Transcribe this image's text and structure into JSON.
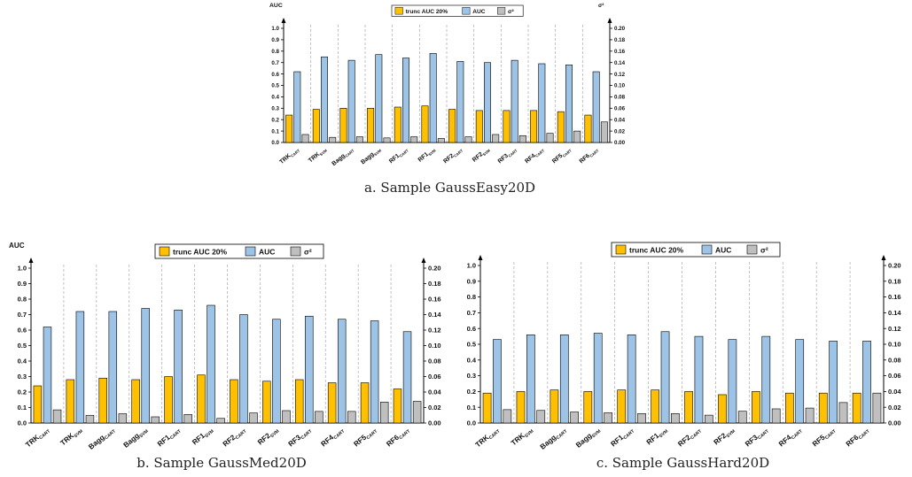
{
  "colors": {
    "trunc": "#FFC000",
    "auc": "#9DC3E6",
    "var": "#BFBFBF",
    "edge": "#000000",
    "grid": "#AAAAAA"
  },
  "captions": {
    "a": "a. Sample GaussEasy20D",
    "b": "b. Sample GaussMed20D",
    "c": "c. Sample GaussHard20D"
  },
  "chart_data": [
    {
      "id": "a",
      "type": "bar",
      "ylabel_left": "AUC",
      "ylabel_right": "σ²",
      "ylim_left": [
        0,
        1.0
      ],
      "ylim_right": [
        0,
        0.2
      ],
      "yticks_left": [
        "0.0",
        "0.1",
        "0.2",
        "0.3",
        "0.4",
        "0.5",
        "0.6",
        "0.7",
        "0.8",
        "0.9",
        "1.0"
      ],
      "yticks_right": [
        "0.00",
        "0.02",
        "0.04",
        "0.06",
        "0.08",
        "0.10",
        "0.12",
        "0.14",
        "0.16",
        "0.18",
        "0.20"
      ],
      "legend_position": "top-center",
      "categories": [
        {
          "base": "TRK",
          "sub": "CART"
        },
        {
          "base": "TRK",
          "sub": "SVM"
        },
        {
          "base": "Bagg",
          "sub": "CART"
        },
        {
          "base": "Bagg",
          "sub": "SVM"
        },
        {
          "base": "RF1",
          "sub": "CART"
        },
        {
          "base": "RF1",
          "sub": "SVM"
        },
        {
          "base": "RF2",
          "sub": "CART"
        },
        {
          "base": "RF2",
          "sub": "SVM"
        },
        {
          "base": "RF3",
          "sub": "CART"
        },
        {
          "base": "RF4",
          "sub": "CART"
        },
        {
          "base": "RF5",
          "sub": "CART"
        },
        {
          "base": "RF6",
          "sub": "CART"
        }
      ],
      "series": [
        {
          "name": "trunc AUC 20%",
          "axis": "left",
          "values": [
            0.24,
            0.29,
            0.3,
            0.3,
            0.31,
            0.32,
            0.29,
            0.28,
            0.28,
            0.28,
            0.27,
            0.24
          ]
        },
        {
          "name": "AUC",
          "axis": "left",
          "values": [
            0.62,
            0.75,
            0.72,
            0.77,
            0.74,
            0.78,
            0.71,
            0.7,
            0.72,
            0.69,
            0.68,
            0.62
          ]
        },
        {
          "name": "σ²",
          "axis": "right",
          "values": [
            0.014,
            0.009,
            0.01,
            0.008,
            0.01,
            0.007,
            0.01,
            0.014,
            0.012,
            0.016,
            0.02,
            0.036
          ]
        }
      ]
    },
    {
      "id": "b",
      "type": "bar",
      "ylabel_left": "AUC",
      "ylabel_right": "",
      "ylim_left": [
        0,
        1.0
      ],
      "ylim_right": [
        0,
        0.2
      ],
      "yticks_left": [
        "0.0",
        "0.1",
        "0.2",
        "0.3",
        "0.4",
        "0.5",
        "0.6",
        "0.7",
        "0.8",
        "0.9",
        "1.0"
      ],
      "yticks_right": [
        "0.00",
        "0.02",
        "0.04",
        "0.06",
        "0.08",
        "0.10",
        "0.12",
        "0.14",
        "0.16",
        "0.18",
        "0.20"
      ],
      "legend_position": "top-center",
      "categories": [
        {
          "base": "TRK",
          "sub": "CART"
        },
        {
          "base": "TRK",
          "sub": "SVM"
        },
        {
          "base": "Bagg",
          "sub": "CART"
        },
        {
          "base": "Bagg",
          "sub": "SVM"
        },
        {
          "base": "RF1",
          "sub": "CART"
        },
        {
          "base": "RF1",
          "sub": "SVM"
        },
        {
          "base": "RF2",
          "sub": "CART"
        },
        {
          "base": "RF2",
          "sub": "SVM"
        },
        {
          "base": "RF3",
          "sub": "CART"
        },
        {
          "base": "RF4",
          "sub": "CART"
        },
        {
          "base": "RF5",
          "sub": "CART"
        },
        {
          "base": "RF6",
          "sub": "CART"
        }
      ],
      "series": [
        {
          "name": "trunc AUC 20%",
          "axis": "left",
          "values": [
            0.24,
            0.28,
            0.29,
            0.28,
            0.3,
            0.31,
            0.28,
            0.27,
            0.28,
            0.26,
            0.26,
            0.22
          ]
        },
        {
          "name": "AUC",
          "axis": "left",
          "values": [
            0.62,
            0.72,
            0.72,
            0.74,
            0.73,
            0.76,
            0.7,
            0.67,
            0.69,
            0.67,
            0.66,
            0.59
          ]
        },
        {
          "name": "σ²",
          "axis": "right",
          "values": [
            0.017,
            0.01,
            0.012,
            0.008,
            0.011,
            0.006,
            0.013,
            0.016,
            0.015,
            0.015,
            0.027,
            0.028
          ]
        }
      ]
    },
    {
      "id": "c",
      "type": "bar",
      "ylabel_left": "",
      "ylabel_right": "",
      "ylim_left": [
        0,
        1.0
      ],
      "ylim_right": [
        0,
        0.2
      ],
      "yticks_left": [
        "0.0",
        "0.1",
        "0.2",
        "0.3",
        "0.4",
        "0.5",
        "0.6",
        "0.7",
        "0.8",
        "0.9",
        "1.0"
      ],
      "yticks_right": [
        "0.00",
        "0.02",
        "0.04",
        "0.06",
        "0.08",
        "0.10",
        "0.12",
        "0.14",
        "0.16",
        "0.18",
        "0.20"
      ],
      "legend_position": "top-center",
      "categories": [
        {
          "base": "TRK",
          "sub": "CART"
        },
        {
          "base": "TRK",
          "sub": "SVM"
        },
        {
          "base": "Bagg",
          "sub": "CART"
        },
        {
          "base": "Bagg",
          "sub": "SVM"
        },
        {
          "base": "RF1",
          "sub": "CART"
        },
        {
          "base": "RF1",
          "sub": "SVM"
        },
        {
          "base": "RF2",
          "sub": "CART"
        },
        {
          "base": "RF2",
          "sub": "SVM"
        },
        {
          "base": "RF3",
          "sub": "CART"
        },
        {
          "base": "RF4",
          "sub": "CART"
        },
        {
          "base": "RF5",
          "sub": "CART"
        },
        {
          "base": "RF6",
          "sub": "CART"
        }
      ],
      "series": [
        {
          "name": "trunc AUC 20%",
          "axis": "left",
          "values": [
            0.19,
            0.2,
            0.21,
            0.2,
            0.21,
            0.21,
            0.2,
            0.18,
            0.2,
            0.19,
            0.19,
            0.19
          ]
        },
        {
          "name": "AUC",
          "axis": "left",
          "values": [
            0.53,
            0.56,
            0.56,
            0.57,
            0.56,
            0.58,
            0.55,
            0.53,
            0.55,
            0.53,
            0.52,
            0.52
          ]
        },
        {
          "name": "σ²",
          "axis": "right",
          "values": [
            0.017,
            0.016,
            0.014,
            0.013,
            0.012,
            0.012,
            0.01,
            0.015,
            0.018,
            0.019,
            0.026,
            0.038
          ]
        }
      ]
    }
  ]
}
